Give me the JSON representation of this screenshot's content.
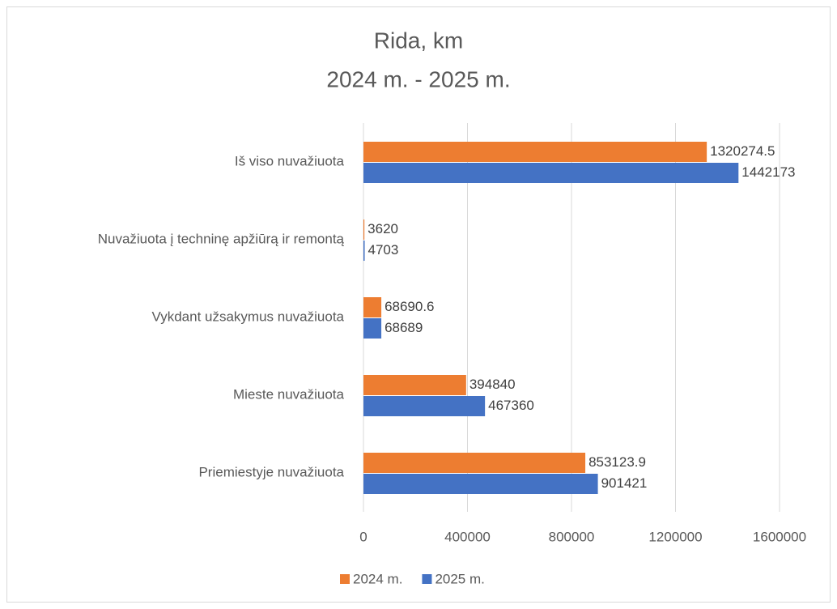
{
  "chart_data": {
    "type": "hbar",
    "title": "Rida, km",
    "subtitle": "2024 m. - 2025 m.",
    "categories": [
      "Iš viso nuvažiuota",
      "Nuvažiuota į techninę apžiūrą ir remontą",
      "Vykdant užsakymus nuvažiuota",
      "Mieste nuvažiuota",
      "Priemiestyje nuvažiuota"
    ],
    "series": [
      {
        "name": "2024 m.",
        "color": "#ED7D31",
        "values": [
          1320274.5,
          3620,
          68690.6,
          394840,
          853123.9
        ]
      },
      {
        "name": "2025 m.",
        "color": "#4472C4",
        "values": [
          1442173,
          4703,
          68689,
          467360,
          901421
        ]
      }
    ],
    "xlim": [
      0,
      1600000
    ],
    "xticks": [
      0,
      400000,
      800000,
      1200000,
      1600000
    ],
    "grid": true,
    "legend": "bottom"
  }
}
